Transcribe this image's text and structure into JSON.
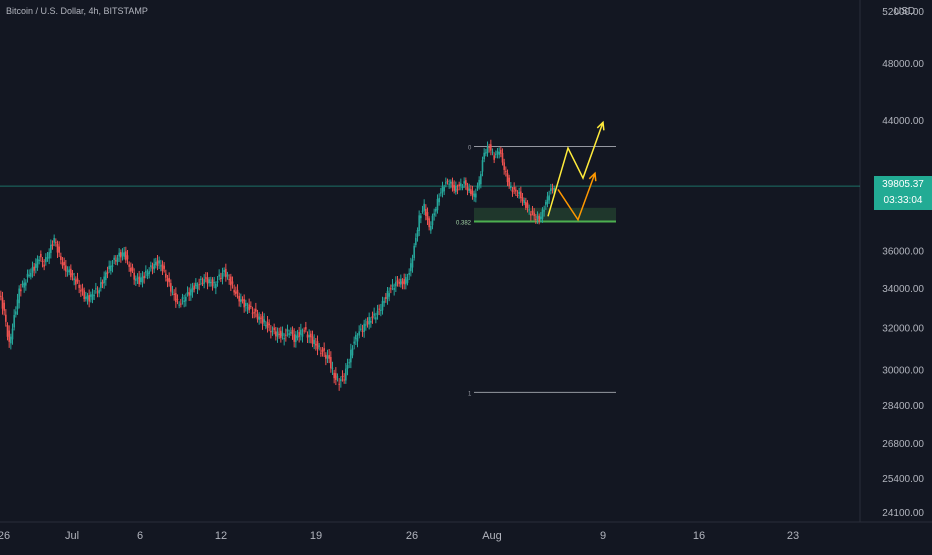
{
  "symbol_title": "Bitcoin / U.S. Dollar, 4h, BITSTAMP",
  "currency": "USD",
  "last_price": "39805.37",
  "countdown": "03:33:04",
  "colors": {
    "background": "#131722",
    "up": "#26a69a",
    "down": "#ef5350",
    "tag": "#22ab94",
    "yellow": "#ffeb3b",
    "orange": "#ff9800",
    "fib_line": "#9598a1",
    "support": "#4caf50"
  },
  "chart_data": {
    "type": "candlestick",
    "x_ticks": [
      "26",
      "Jul",
      "6",
      "12",
      "19",
      "26",
      "Aug",
      "9",
      "16",
      "23"
    ],
    "y_ticks": [
      "52000.00",
      "48000.00",
      "44000.00",
      "36000.00",
      "34000.00",
      "32000.00",
      "30000.00",
      "28400.00",
      "26800.00",
      "25400.00",
      "24100.00"
    ],
    "ylim": [
      24100,
      52000
    ],
    "y_scale": "log",
    "xlim": [
      0,
      925
    ],
    "series": [
      {
        "values": [
          [
            0,
            33800
          ],
          [
            5,
            32800
          ],
          [
            10,
            31200
          ],
          [
            15,
            32500
          ],
          [
            20,
            33900
          ],
          [
            25,
            34300
          ],
          [
            30,
            34800
          ],
          [
            35,
            35100
          ],
          [
            40,
            35700
          ],
          [
            45,
            35300
          ],
          [
            50,
            36000
          ],
          [
            55,
            36700
          ],
          [
            60,
            35800
          ],
          [
            65,
            35100
          ],
          [
            70,
            34900
          ],
          [
            75,
            34500
          ],
          [
            80,
            34100
          ],
          [
            85,
            33600
          ],
          [
            90,
            33500
          ],
          [
            95,
            33800
          ],
          [
            100,
            34000
          ],
          [
            105,
            34600
          ],
          [
            110,
            35100
          ],
          [
            115,
            35500
          ],
          [
            120,
            35800
          ],
          [
            125,
            35900
          ],
          [
            130,
            35200
          ],
          [
            135,
            34600
          ],
          [
            140,
            34400
          ],
          [
            145,
            34700
          ],
          [
            150,
            35000
          ],
          [
            155,
            35300
          ],
          [
            160,
            35400
          ],
          [
            165,
            34900
          ],
          [
            170,
            34200
          ],
          [
            175,
            33600
          ],
          [
            180,
            33200
          ],
          [
            185,
            33500
          ],
          [
            190,
            33800
          ],
          [
            195,
            34100
          ],
          [
            200,
            34300
          ],
          [
            205,
            34500
          ],
          [
            210,
            34400
          ],
          [
            215,
            34200
          ],
          [
            220,
            34600
          ],
          [
            225,
            34900
          ],
          [
            230,
            34500
          ],
          [
            235,
            33900
          ],
          [
            240,
            33500
          ],
          [
            245,
            33200
          ],
          [
            250,
            33000
          ],
          [
            255,
            32800
          ],
          [
            260,
            32500
          ],
          [
            265,
            32300
          ],
          [
            270,
            32000
          ],
          [
            275,
            31800
          ],
          [
            280,
            31700
          ],
          [
            285,
            31600
          ],
          [
            290,
            31900
          ],
          [
            295,
            31500
          ],
          [
            300,
            31700
          ],
          [
            305,
            31900
          ],
          [
            310,
            31600
          ],
          [
            315,
            31300
          ],
          [
            320,
            31000
          ],
          [
            325,
            30800
          ],
          [
            330,
            30500
          ],
          [
            335,
            29700
          ],
          [
            340,
            29500
          ],
          [
            345,
            29700
          ],
          [
            350,
            30500
          ],
          [
            355,
            31400
          ],
          [
            360,
            31800
          ],
          [
            365,
            32100
          ],
          [
            370,
            32400
          ],
          [
            375,
            32600
          ],
          [
            380,
            32900
          ],
          [
            385,
            33400
          ],
          [
            390,
            33900
          ],
          [
            395,
            34200
          ],
          [
            400,
            34400
          ],
          [
            405,
            34300
          ],
          [
            410,
            34800
          ],
          [
            415,
            36200
          ],
          [
            420,
            37900
          ],
          [
            425,
            38600
          ],
          [
            430,
            37300
          ],
          [
            435,
            38200
          ],
          [
            440,
            39200
          ],
          [
            445,
            39900
          ],
          [
            450,
            40100
          ],
          [
            455,
            39600
          ],
          [
            460,
            39800
          ],
          [
            465,
            40000
          ],
          [
            470,
            39500
          ],
          [
            475,
            39200
          ],
          [
            480,
            40100
          ],
          [
            485,
            41900
          ],
          [
            490,
            42300
          ],
          [
            495,
            41600
          ],
          [
            500,
            42100
          ],
          [
            505,
            40900
          ],
          [
            510,
            39800
          ],
          [
            515,
            39500
          ],
          [
            520,
            39300
          ],
          [
            525,
            38800
          ],
          [
            530,
            38300
          ],
          [
            535,
            38000
          ],
          [
            540,
            37800
          ],
          [
            545,
            38500
          ],
          [
            550,
            39400
          ],
          [
            555,
            39805
          ]
        ]
      }
    ],
    "fibonacci": [
      {
        "level": "0",
        "price": 42300
      },
      {
        "level": "0.382",
        "price": 37700
      },
      {
        "level": "1",
        "price": 29000
      }
    ],
    "support_zone": [
      37700,
      38500
    ],
    "projections": [
      {
        "color": "yellow",
        "points": [
          [
            548,
            38000
          ],
          [
            568,
            42200
          ],
          [
            583,
            40300
          ],
          [
            603,
            43900
          ]
        ]
      },
      {
        "color": "orange",
        "points": [
          [
            558,
            39600
          ],
          [
            578,
            37800
          ],
          [
            595,
            40600
          ]
        ]
      }
    ]
  }
}
